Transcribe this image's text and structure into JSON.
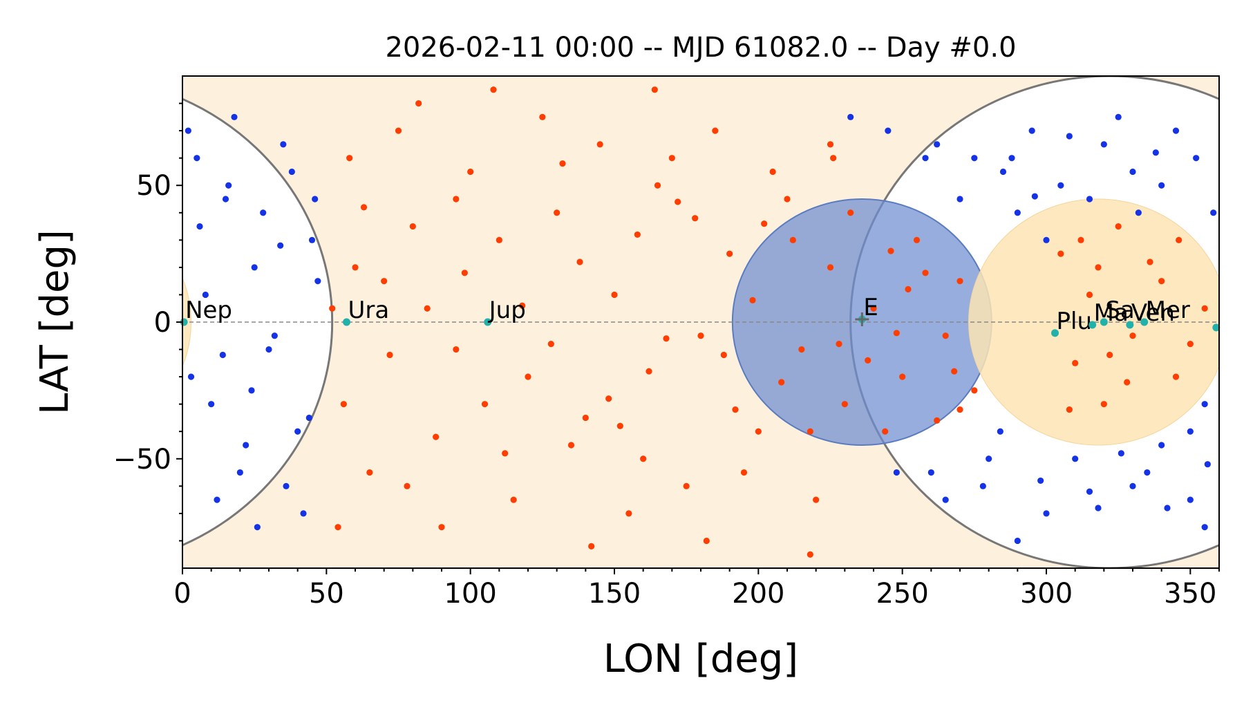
{
  "chart_data": {
    "type": "scatter",
    "title": "2026-02-11 00:00 -- MJD 61082.0 -- Day #0.0",
    "xlabel": "LON [deg]",
    "ylabel": "LAT [deg]",
    "xlim": [
      0,
      360
    ],
    "ylim": [
      -90,
      90
    ],
    "xticks": [
      0,
      50,
      100,
      150,
      200,
      250,
      300,
      350
    ],
    "yticks": [
      -50,
      0,
      50
    ],
    "ytick_labels": [
      "−50",
      "0",
      "50"
    ],
    "grid": false,
    "legend": "none",
    "colors": {
      "red_points": "#ff3d00",
      "blue_points": "#1432e6",
      "planet_points": "#20b2aa",
      "background_zone": "#fdf1de",
      "sun_zone": "#fde4b4",
      "blue_disc": "#6d8ed1",
      "circle_outline": "#777777",
      "equator": "#888888"
    },
    "regions": [
      {
        "kind": "avoid-circle",
        "center": [
          0,
          0
        ],
        "radius": 50
      },
      {
        "kind": "avoid-circle",
        "center": [
          322,
          0
        ],
        "radius": 90
      },
      {
        "kind": "blue-disc",
        "center": [
          236,
          0
        ],
        "radius": 45
      },
      {
        "kind": "orange-disc",
        "center": [
          318,
          0
        ],
        "radius": 45
      }
    ],
    "planets": [
      {
        "label": "Nep",
        "lon": 0.5,
        "lat": 0
      },
      {
        "label": "Ura",
        "lon": 57,
        "lat": 0
      },
      {
        "label": "Jup",
        "lon": 106,
        "lat": 0
      },
      {
        "label": "E",
        "lon": 236,
        "lat": 1
      },
      {
        "label": "Plu",
        "lon": 303,
        "lat": -4
      },
      {
        "label": "Ma",
        "lon": 316,
        "lat": -1
      },
      {
        "label": "Sa",
        "lon": 320,
        "lat": 0
      },
      {
        "label": "Ven",
        "lon": 329,
        "lat": -1
      },
      {
        "label": "Mer",
        "lon": 334,
        "lat": 0
      },
      {
        "label": "",
        "lon": 359,
        "lat": -2
      }
    ],
    "series": [
      {
        "color": "red",
        "points": [
          [
            60,
            20
          ],
          [
            70,
            15
          ],
          [
            85,
            5
          ],
          [
            95,
            -10
          ],
          [
            110,
            30
          ],
          [
            120,
            -20
          ],
          [
            130,
            40
          ],
          [
            140,
            -35
          ],
          [
            150,
            10
          ],
          [
            160,
            -50
          ],
          [
            170,
            60
          ],
          [
            180,
            -5
          ],
          [
            190,
            25
          ],
          [
            200,
            -40
          ],
          [
            210,
            45
          ],
          [
            215,
            -10
          ],
          [
            225,
            20
          ],
          [
            230,
            -30
          ],
          [
            240,
            5
          ],
          [
            250,
            -20
          ],
          [
            255,
            30
          ],
          [
            265,
            -5
          ],
          [
            270,
            15
          ],
          [
            275,
            -25
          ],
          [
            305,
            25
          ],
          [
            310,
            -15
          ],
          [
            315,
            10
          ],
          [
            320,
            -30
          ],
          [
            325,
            35
          ],
          [
            330,
            -5
          ],
          [
            340,
            15
          ],
          [
            345,
            -20
          ],
          [
            355,
            5
          ],
          [
            65,
            -55
          ],
          [
            75,
            70
          ],
          [
            90,
            -75
          ],
          [
            100,
            55
          ],
          [
            115,
            -65
          ],
          [
            125,
            75
          ],
          [
            135,
            -45
          ],
          [
            145,
            65
          ],
          [
            155,
            -70
          ],
          [
            165,
            50
          ],
          [
            175,
            -60
          ],
          [
            185,
            70
          ],
          [
            195,
            -55
          ],
          [
            205,
            55
          ],
          [
            220,
            -65
          ],
          [
            225,
            65
          ],
          [
            80,
            35
          ],
          [
            105,
            -30
          ],
          [
            138,
            22
          ],
          [
            162,
            -18
          ],
          [
            178,
            38
          ],
          [
            198,
            8
          ],
          [
            208,
            -22
          ],
          [
            244,
            -40
          ],
          [
            258,
            18
          ],
          [
            262,
            -36
          ],
          [
            52,
            5
          ],
          [
            56,
            -30
          ],
          [
            63,
            42
          ],
          [
            72,
            -12
          ],
          [
            88,
            -42
          ],
          [
            98,
            18
          ],
          [
            118,
            6
          ],
          [
            128,
            -8
          ],
          [
            148,
            -28
          ],
          [
            158,
            32
          ],
          [
            168,
            -6
          ],
          [
            188,
            -12
          ],
          [
            212,
            30
          ],
          [
            218,
            -40
          ],
          [
            228,
            -8
          ],
          [
            246,
            26
          ],
          [
            268,
            -18
          ],
          [
            312,
            30
          ],
          [
            322,
            -12
          ],
          [
            336,
            22
          ],
          [
            350,
            -8
          ],
          [
            54,
            -75
          ],
          [
            82,
            80
          ],
          [
            108,
            85
          ],
          [
            142,
            -82
          ],
          [
            164,
            85
          ],
          [
            182,
            -80
          ],
          [
            218,
            -85
          ],
          [
            226,
            60
          ],
          [
            58,
            60
          ],
          [
            78,
            -60
          ],
          [
            95,
            45
          ],
          [
            112,
            -48
          ],
          [
            132,
            58
          ],
          [
            152,
            -38
          ],
          [
            172,
            44
          ],
          [
            192,
            -32
          ],
          [
            202,
            36
          ],
          [
            232,
            40
          ],
          [
            238,
            -14
          ],
          [
            248,
            -4
          ],
          [
            252,
            12
          ],
          [
            270,
            -32
          ],
          [
            308,
            -32
          ],
          [
            318,
            20
          ],
          [
            328,
            -22
          ],
          [
            346,
            30
          ]
        ]
      },
      {
        "color": "blue",
        "points": [
          [
            5,
            60
          ],
          [
            10,
            -30
          ],
          [
            15,
            45
          ],
          [
            20,
            -55
          ],
          [
            25,
            20
          ],
          [
            30,
            -10
          ],
          [
            35,
            65
          ],
          [
            40,
            -40
          ],
          [
            45,
            30
          ],
          [
            3,
            -20
          ],
          [
            8,
            10
          ],
          [
            12,
            -65
          ],
          [
            18,
            75
          ],
          [
            22,
            -45
          ],
          [
            28,
            40
          ],
          [
            32,
            -5
          ],
          [
            38,
            55
          ],
          [
            42,
            -70
          ],
          [
            47,
            15
          ],
          [
            6,
            35
          ],
          [
            14,
            -12
          ],
          [
            24,
            -25
          ],
          [
            34,
            28
          ],
          [
            44,
            -35
          ],
          [
            2,
            70
          ],
          [
            16,
            50
          ],
          [
            26,
            -75
          ],
          [
            36,
            -60
          ],
          [
            46,
            45
          ],
          [
            232,
            75
          ],
          [
            245,
            70
          ],
          [
            258,
            60
          ],
          [
            270,
            45
          ],
          [
            285,
            55
          ],
          [
            295,
            70
          ],
          [
            300,
            30
          ],
          [
            310,
            -50
          ],
          [
            320,
            65
          ],
          [
            330,
            -60
          ],
          [
            340,
            50
          ],
          [
            350,
            -40
          ],
          [
            358,
            40
          ],
          [
            265,
            -65
          ],
          [
            280,
            -50
          ],
          [
            290,
            -80
          ],
          [
            300,
            -70
          ],
          [
            315,
            -62
          ],
          [
            325,
            75
          ],
          [
            335,
            -55
          ],
          [
            345,
            70
          ],
          [
            355,
            -75
          ],
          [
            355,
            -30
          ],
          [
            275,
            60
          ],
          [
            290,
            40
          ],
          [
            305,
            50
          ],
          [
            315,
            45
          ],
          [
            330,
            55
          ],
          [
            340,
            -45
          ],
          [
            350,
            -65
          ],
          [
            260,
            -55
          ],
          [
            248,
            -55
          ],
          [
            262,
            65
          ],
          [
            278,
            -60
          ],
          [
            288,
            60
          ],
          [
            298,
            -58
          ],
          [
            308,
            68
          ],
          [
            318,
            -68
          ],
          [
            332,
            40
          ],
          [
            342,
            -68
          ],
          [
            352,
            60
          ],
          [
            356,
            -52
          ],
          [
            284,
            -40
          ],
          [
            296,
            46
          ],
          [
            326,
            -48
          ],
          [
            338,
            62
          ]
        ]
      }
    ]
  }
}
